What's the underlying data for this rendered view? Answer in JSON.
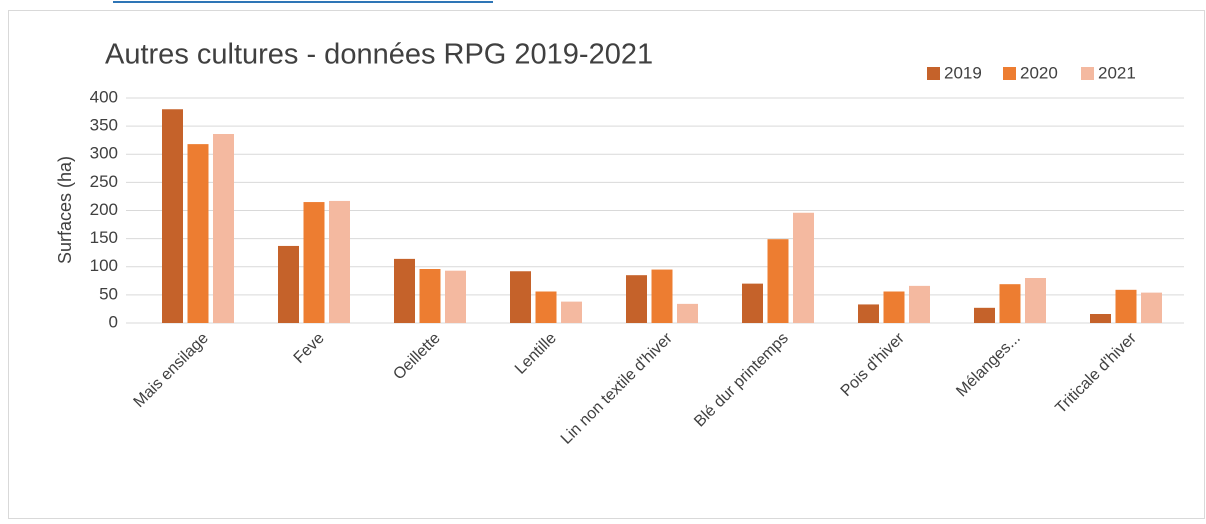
{
  "chart_data": {
    "type": "bar",
    "title": "Autres cultures - données RPG 2019-2021",
    "ylabel": "Surfaces (ha)",
    "categories": [
      "Mais ensilage",
      "Feve",
      "Oeillette",
      "Lentille",
      "Lin non textile d'hiver",
      "Blé dur printemps",
      "Pois d'hiver",
      "Mélanges...",
      "Triticale d'hiver"
    ],
    "series": [
      {
        "name": "2019",
        "color": "#c5622a",
        "values": [
          380,
          137,
          114,
          92,
          85,
          70,
          33,
          27,
          16
        ]
      },
      {
        "name": "2020",
        "color": "#ed7d31",
        "values": [
          318,
          215,
          96,
          56,
          95,
          149,
          56,
          69,
          59
        ]
      },
      {
        "name": "2021",
        "color": "#f4b9a0",
        "values": [
          336,
          217,
          93,
          38,
          34,
          196,
          66,
          80,
          54
        ]
      }
    ],
    "ylim": [
      0,
      400
    ],
    "yticks": [
      0,
      50,
      100,
      150,
      200,
      250,
      300,
      350,
      400
    ],
    "grid": true,
    "legend": "top-right"
  }
}
